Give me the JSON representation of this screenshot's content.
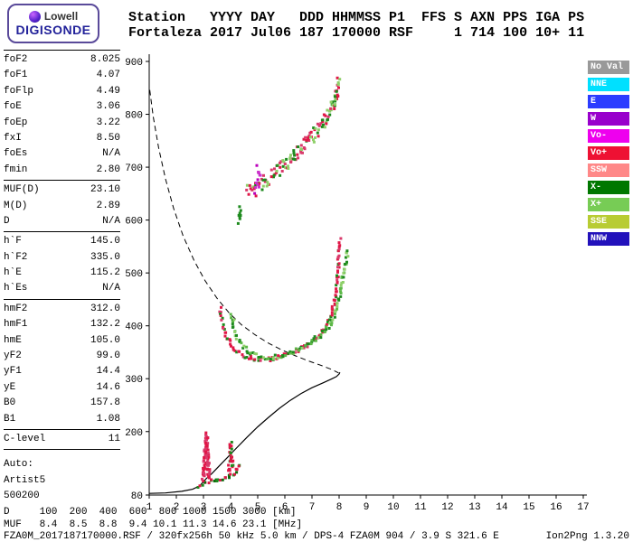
{
  "logo": {
    "brand_top": "Lowell",
    "brand_bottom": "DIGISONDE"
  },
  "header": {
    "line1": "Station   YYYY DAY   DDD HHMMSS P1  FFS S AXN PPS IGA PS",
    "line2": "Fortaleza 2017 Jul06 187 170000 RSF     1 714 100 10+ 11"
  },
  "parameters": {
    "groups": [
      {
        "rows": [
          {
            "label": "foF2",
            "value": "8.025"
          },
          {
            "label": "foF1",
            "value": "4.07"
          },
          {
            "label": "foFlp",
            "value": "4.49"
          },
          {
            "label": "foE",
            "value": "3.06"
          },
          {
            "label": "foEp",
            "value": "3.22"
          },
          {
            "label": "fxI",
            "value": "8.50"
          },
          {
            "label": "foEs",
            "value": "N/A"
          },
          {
            "label": "fmin",
            "value": "2.80"
          }
        ]
      },
      {
        "rows": [
          {
            "label": "MUF(D)",
            "value": "23.10"
          },
          {
            "label": "M(D)",
            "value": "2.89"
          },
          {
            "label": "D",
            "value": "N/A"
          }
        ]
      },
      {
        "rows": [
          {
            "label": "h`F",
            "value": "145.0"
          },
          {
            "label": "h`F2",
            "value": "335.0"
          },
          {
            "label": "h`E",
            "value": "115.2"
          },
          {
            "label": "h`Es",
            "value": "N/A"
          }
        ]
      },
      {
        "rows": [
          {
            "label": "hmF2",
            "value": "312.0"
          },
          {
            "label": "hmF1",
            "value": "132.2"
          },
          {
            "label": "hmE",
            "value": "105.0"
          },
          {
            "label": "yF2",
            "value": "99.0"
          },
          {
            "label": "yF1",
            "value": "14.4"
          },
          {
            "label": "yE",
            "value": "14.6"
          },
          {
            "label": "B0",
            "value": "157.8"
          },
          {
            "label": "B1",
            "value": "1.08"
          }
        ]
      },
      {
        "rows": [
          {
            "label": "C-level",
            "value": "11"
          }
        ]
      }
    ],
    "footer": [
      "Auto:",
      "Artist5",
      "500200"
    ]
  },
  "legend": {
    "items": [
      {
        "label": "No Val",
        "color": "#999999"
      },
      {
        "label": "NNE",
        "color": "#00e0ff"
      },
      {
        "label": "E",
        "color": "#2b3cff"
      },
      {
        "label": "W",
        "color": "#9900cc"
      },
      {
        "label": "Vo-",
        "color": "#ee00ee"
      },
      {
        "label": "Vo+",
        "color": "#ee1133"
      },
      {
        "label": "SSW",
        "color": "#ff8888"
      },
      {
        "label": "X-",
        "color": "#007700"
      },
      {
        "label": "X+",
        "color": "#77cc55"
      },
      {
        "label": "SSE",
        "color": "#b8cc33"
      },
      {
        "label": "NNW",
        "color": "#2211bb"
      }
    ]
  },
  "bottom_table": {
    "rows": [
      {
        "label": "D",
        "values": [
          "100",
          "200",
          "400",
          "600",
          "800",
          "1000",
          "1500",
          "3000"
        ],
        "unit": "[km]"
      },
      {
        "label": "MUF",
        "values": [
          "8.4",
          "8.5",
          "8.8",
          "9.4",
          "10.1",
          "11.3",
          "14.6",
          "23.1"
        ],
        "unit": "[MHz]"
      }
    ]
  },
  "status": {
    "main": "FZA0M_2017187170000.RSF / 320fx256h 50 kHz 5.0 km / DPS-4 FZA0M 904 / 3.9 S 321.6 E",
    "version": "Ion2Png 1.3.20"
  },
  "chart_data": {
    "type": "scatter",
    "x_unit": "MHz",
    "y_unit": "km",
    "xlim": [
      1,
      17
    ],
    "ylim": [
      80,
      900
    ],
    "x_ticks": [
      1,
      2,
      3,
      4,
      5,
      6,
      7,
      8,
      9,
      10,
      11,
      12,
      13,
      14,
      15,
      16,
      17
    ],
    "y_ticks": [
      900,
      800,
      700,
      600,
      500,
      400,
      300,
      200,
      80
    ],
    "grid": false,
    "traces": [
      {
        "name": "F2-ordinary-trace",
        "colors": [
          "#e01747",
          "#e01747",
          "#d93a6b",
          "#1e8a1e"
        ],
        "spread": 4,
        "density": 1,
        "points": [
          [
            3.62,
            432
          ],
          [
            3.68,
            412
          ],
          [
            3.75,
            396
          ],
          [
            3.84,
            381
          ],
          [
            3.95,
            368
          ],
          [
            4.1,
            357
          ],
          [
            4.28,
            349
          ],
          [
            4.5,
            344
          ],
          [
            4.75,
            340
          ],
          [
            5.0,
            337
          ],
          [
            5.3,
            336
          ],
          [
            5.6,
            338
          ],
          [
            5.9,
            342
          ],
          [
            6.2,
            347
          ],
          [
            6.5,
            354
          ],
          [
            6.8,
            362
          ],
          [
            7.05,
            371
          ],
          [
            7.25,
            381
          ],
          [
            7.45,
            393
          ],
          [
            7.6,
            407
          ],
          [
            7.72,
            423
          ],
          [
            7.82,
            444
          ],
          [
            7.9,
            472
          ],
          [
            7.95,
            505
          ],
          [
            7.99,
            535
          ],
          [
            8.02,
            565
          ]
        ]
      },
      {
        "name": "F2-extraordinary-trace",
        "colors": [
          "#1e8a1e",
          "#5cb847",
          "#8fd06a"
        ],
        "spread": 4,
        "density": 1,
        "points": [
          [
            4.05,
            420
          ],
          [
            4.12,
            398
          ],
          [
            4.22,
            381
          ],
          [
            4.36,
            367
          ],
          [
            4.54,
            356
          ],
          [
            4.76,
            348
          ],
          [
            5.0,
            343
          ],
          [
            5.3,
            340
          ],
          [
            5.6,
            340
          ],
          [
            5.9,
            343
          ],
          [
            6.2,
            348
          ],
          [
            6.5,
            355
          ],
          [
            6.8,
            363
          ],
          [
            7.1,
            373
          ],
          [
            7.35,
            384
          ],
          [
            7.6,
            398
          ],
          [
            7.78,
            415
          ],
          [
            7.92,
            436
          ],
          [
            8.04,
            462
          ],
          [
            8.15,
            492
          ],
          [
            8.25,
            520
          ],
          [
            8.32,
            545
          ]
        ]
      },
      {
        "name": "E-region-trace",
        "colors": [
          "#1e8a1e",
          "#e01747",
          "#0d6b0d"
        ],
        "spread": 3,
        "density": 1,
        "points": [
          [
            2.8,
            96
          ],
          [
            2.95,
            100
          ],
          [
            3.1,
            104
          ],
          [
            3.3,
            108
          ],
          [
            3.5,
            108
          ],
          [
            3.7,
            110
          ],
          [
            3.9,
            113
          ],
          [
            4.1,
            119
          ],
          [
            4.25,
            127
          ],
          [
            4.38,
            141
          ]
        ]
      },
      {
        "name": "foE-cusp",
        "colors": [
          "#e01747",
          "#d93a6b"
        ],
        "spread": 6,
        "density": 2,
        "points": [
          [
            3.0,
            110
          ],
          [
            3.03,
            128
          ],
          [
            3.06,
            152
          ],
          [
            3.09,
            176
          ],
          [
            3.11,
            193
          ],
          [
            3.13,
            172
          ],
          [
            3.16,
            146
          ],
          [
            3.19,
            124
          ],
          [
            3.23,
            112
          ]
        ]
      },
      {
        "name": "fxE-cusp",
        "colors": [
          "#1e8a1e",
          "#e01747"
        ],
        "spread": 5,
        "density": 1,
        "points": [
          [
            3.93,
            122
          ],
          [
            3.96,
            140
          ],
          [
            3.99,
            160
          ],
          [
            4.01,
            178
          ],
          [
            4.04,
            152
          ],
          [
            4.07,
            128
          ]
        ]
      },
      {
        "name": "second-hop-trace",
        "colors": [
          "#e01747",
          "#d93a6b",
          "#1e8a1e",
          "#8fd06a"
        ],
        "spread": 13,
        "density": 2,
        "points": [
          [
            4.62,
            657
          ],
          [
            4.78,
            655
          ],
          [
            4.95,
            660
          ],
          [
            5.12,
            667
          ],
          [
            5.3,
            674
          ],
          [
            5.5,
            682
          ],
          [
            5.7,
            691
          ],
          [
            5.9,
            700
          ],
          [
            6.1,
            709
          ],
          [
            6.3,
            719
          ],
          [
            6.5,
            729
          ],
          [
            6.7,
            740
          ],
          [
            6.9,
            751
          ],
          [
            7.1,
            763
          ],
          [
            7.3,
            776
          ],
          [
            7.5,
            790
          ],
          [
            7.65,
            803
          ],
          [
            7.78,
            817
          ],
          [
            7.87,
            832
          ],
          [
            7.94,
            848
          ],
          [
            8.0,
            864
          ]
        ]
      },
      {
        "name": "second-hop-oblique-cluster",
        "colors": [
          "#bb00bb",
          "#cc33cc"
        ],
        "spread": 8,
        "density": 1,
        "points": [
          [
            4.93,
            658
          ],
          [
            4.99,
            666
          ],
          [
            5.05,
            675
          ],
          [
            5.09,
            684
          ],
          [
            5.03,
            693
          ],
          [
            4.96,
            701
          ]
        ]
      },
      {
        "name": "upper-green-cluster",
        "colors": [
          "#1e8a1e"
        ],
        "spread": 5,
        "density": 1,
        "points": [
          [
            4.3,
            597
          ],
          [
            4.33,
            611
          ],
          [
            4.37,
            625
          ]
        ]
      }
    ],
    "profile_line": {
      "name": "electron-density-profile",
      "style": "solid",
      "points": [
        [
          1.0,
          83
        ],
        [
          1.6,
          84
        ],
        [
          2.2,
          87
        ],
        [
          2.6,
          91
        ],
        [
          2.85,
          97
        ],
        [
          3.0,
          105
        ],
        [
          3.1,
          111
        ],
        [
          3.3,
          120
        ],
        [
          3.6,
          136
        ],
        [
          3.9,
          152
        ],
        [
          4.2,
          168
        ],
        [
          4.6,
          189
        ],
        [
          5.0,
          209
        ],
        [
          5.4,
          227
        ],
        [
          5.8,
          244
        ],
        [
          6.2,
          259
        ],
        [
          6.6,
          272
        ],
        [
          7.0,
          283
        ],
        [
          7.4,
          292
        ],
        [
          7.7,
          299
        ],
        [
          7.9,
          304
        ],
        [
          8.0,
          309
        ],
        [
          8.03,
          312
        ]
      ]
    },
    "muf_curve": {
      "name": "calculated-muf-curve",
      "style": "dashed",
      "points": [
        [
          1.02,
          846
        ],
        [
          1.15,
          795
        ],
        [
          1.35,
          736
        ],
        [
          1.6,
          678
        ],
        [
          1.9,
          622
        ],
        [
          2.25,
          570
        ],
        [
          2.65,
          524
        ],
        [
          3.05,
          486
        ],
        [
          3.5,
          452
        ],
        [
          3.95,
          424
        ],
        [
          4.4,
          402
        ],
        [
          4.9,
          383
        ],
        [
          5.4,
          367
        ],
        [
          5.9,
          354
        ],
        [
          6.4,
          343
        ],
        [
          6.9,
          333
        ],
        [
          7.35,
          325
        ],
        [
          7.75,
          317
        ],
        [
          7.98,
          311
        ]
      ]
    }
  }
}
